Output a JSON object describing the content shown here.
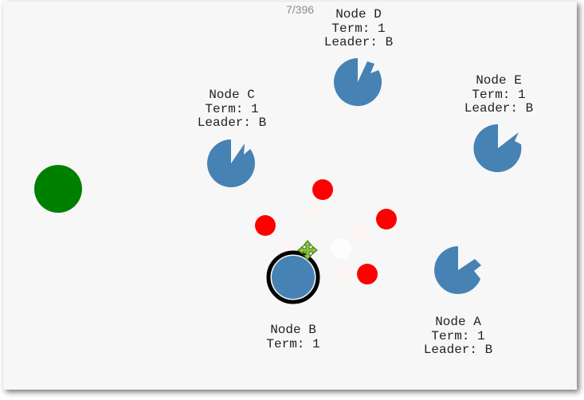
{
  "counter": "7/396",
  "colors": {
    "node": "#4682b4",
    "client": "#008000",
    "message": "#ff0000",
    "selected_ring": "#000000",
    "move_cursor": "#8cc63e"
  },
  "nodes": {
    "a": {
      "name": "Node A",
      "term": "Term: 1",
      "leader": "Leader: B"
    },
    "b": {
      "name": "Node B",
      "term": "Term: 1",
      "leader": ""
    },
    "c": {
      "name": "Node C",
      "term": "Term: 1",
      "leader": "Leader: B"
    },
    "d": {
      "name": "Node D",
      "term": "Term: 1",
      "leader": "Leader: B"
    },
    "e": {
      "name": "Node E",
      "term": "Term: 1",
      "leader": "Leader: B"
    }
  },
  "selected_node": "b",
  "cursor_icon": "move-cursor-icon"
}
